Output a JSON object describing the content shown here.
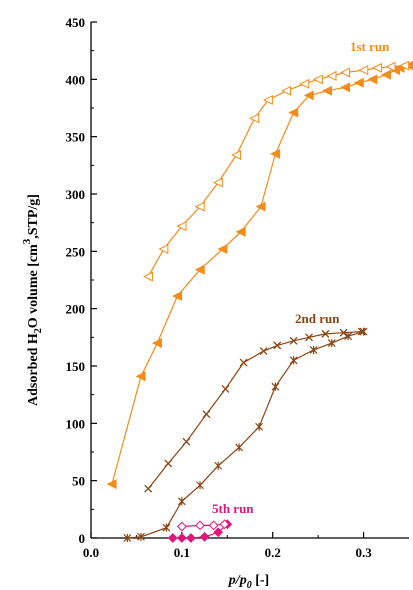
{
  "chart_data": {
    "type": "line",
    "xlabel_parts": [
      "p",
      "/",
      "p",
      "0",
      " [-]"
    ],
    "ylabel_parts": [
      "Adsorbed H",
      "2",
      "O volume [cm",
      "3",
      ",STP/g]"
    ],
    "xlim": [
      0,
      0.35
    ],
    "ylim": [
      0,
      450
    ],
    "x_ticks": [
      0.0,
      0.1,
      0.2,
      0.3
    ],
    "x_tick_labels": [
      "0.0",
      "0.1",
      "0.2",
      "0.3"
    ],
    "y_ticks": [
      0,
      50,
      100,
      150,
      200,
      250,
      300,
      350,
      400,
      450
    ],
    "y_tick_labels": [
      "0",
      "50",
      "100",
      "150",
      "200",
      "250",
      "300",
      "350",
      "400",
      "450"
    ],
    "series": [
      {
        "name": "1st run",
        "branch": "adsorption",
        "color": "#f28c1a",
        "marker": "triangle-left-filled",
        "x": [
          0.023,
          0.055,
          0.073,
          0.095,
          0.12,
          0.145,
          0.165,
          0.187,
          0.203,
          0.223,
          0.24,
          0.26,
          0.28,
          0.295,
          0.31,
          0.325,
          0.335,
          0.34,
          0.35
        ],
        "y": [
          47,
          141,
          170,
          211,
          234,
          252,
          267,
          289,
          335,
          371,
          386,
          390,
          393,
          397,
          400,
          404,
          408,
          410,
          412
        ]
      },
      {
        "name": "1st run",
        "branch": "desorption",
        "color": "#f28c1a",
        "marker": "triangle-left-open",
        "x": [
          0.063,
          0.08,
          0.1,
          0.12,
          0.14,
          0.16,
          0.18,
          0.195,
          0.215,
          0.235,
          0.25,
          0.265,
          0.28,
          0.3,
          0.315,
          0.33,
          0.345
        ],
        "y": [
          228,
          252,
          272,
          289,
          310,
          334,
          366,
          382,
          390,
          396,
          400,
          403,
          406,
          408,
          410,
          411,
          412
        ]
      },
      {
        "name": "2nd run",
        "branch": "adsorption",
        "color": "#8b4513",
        "marker": "asterisk",
        "x": [
          0.04,
          0.055,
          0.083,
          0.1,
          0.12,
          0.14,
          0.163,
          0.185,
          0.203,
          0.223,
          0.245,
          0.265,
          0.283,
          0.3
        ],
        "y": [
          0,
          1,
          9,
          32,
          46,
          63,
          79,
          97,
          132,
          155,
          164,
          170,
          176,
          180
        ]
      },
      {
        "name": "2nd run",
        "branch": "desorption",
        "color": "#8b4513",
        "marker": "x",
        "x": [
          0.063,
          0.085,
          0.105,
          0.127,
          0.148,
          0.168,
          0.19,
          0.205,
          0.223,
          0.24,
          0.258,
          0.278,
          0.298
        ],
        "y": [
          43,
          65,
          84,
          108,
          130,
          153,
          163,
          168,
          172,
          175,
          178,
          179,
          180
        ]
      },
      {
        "name": "5th run",
        "branch": "adsorption",
        "color": "#e0157a",
        "marker": "diamond-filled",
        "x": [
          0.09,
          0.1,
          0.11,
          0.125,
          0.14,
          0.15
        ],
        "y": [
          0,
          0,
          0,
          1,
          5,
          12
        ]
      },
      {
        "name": "5th run",
        "branch": "desorption",
        "color": "#e0157a",
        "marker": "diamond-open",
        "x": [
          0.1,
          0.12,
          0.135,
          0.147
        ],
        "y": [
          10,
          11,
          11,
          12
        ]
      }
    ],
    "annotations": [
      {
        "text": "1st run",
        "color": "#f28c1a"
      },
      {
        "text": "2nd run",
        "color": "#8b4513"
      },
      {
        "text": "5th run",
        "color": "#e0157a"
      }
    ]
  }
}
